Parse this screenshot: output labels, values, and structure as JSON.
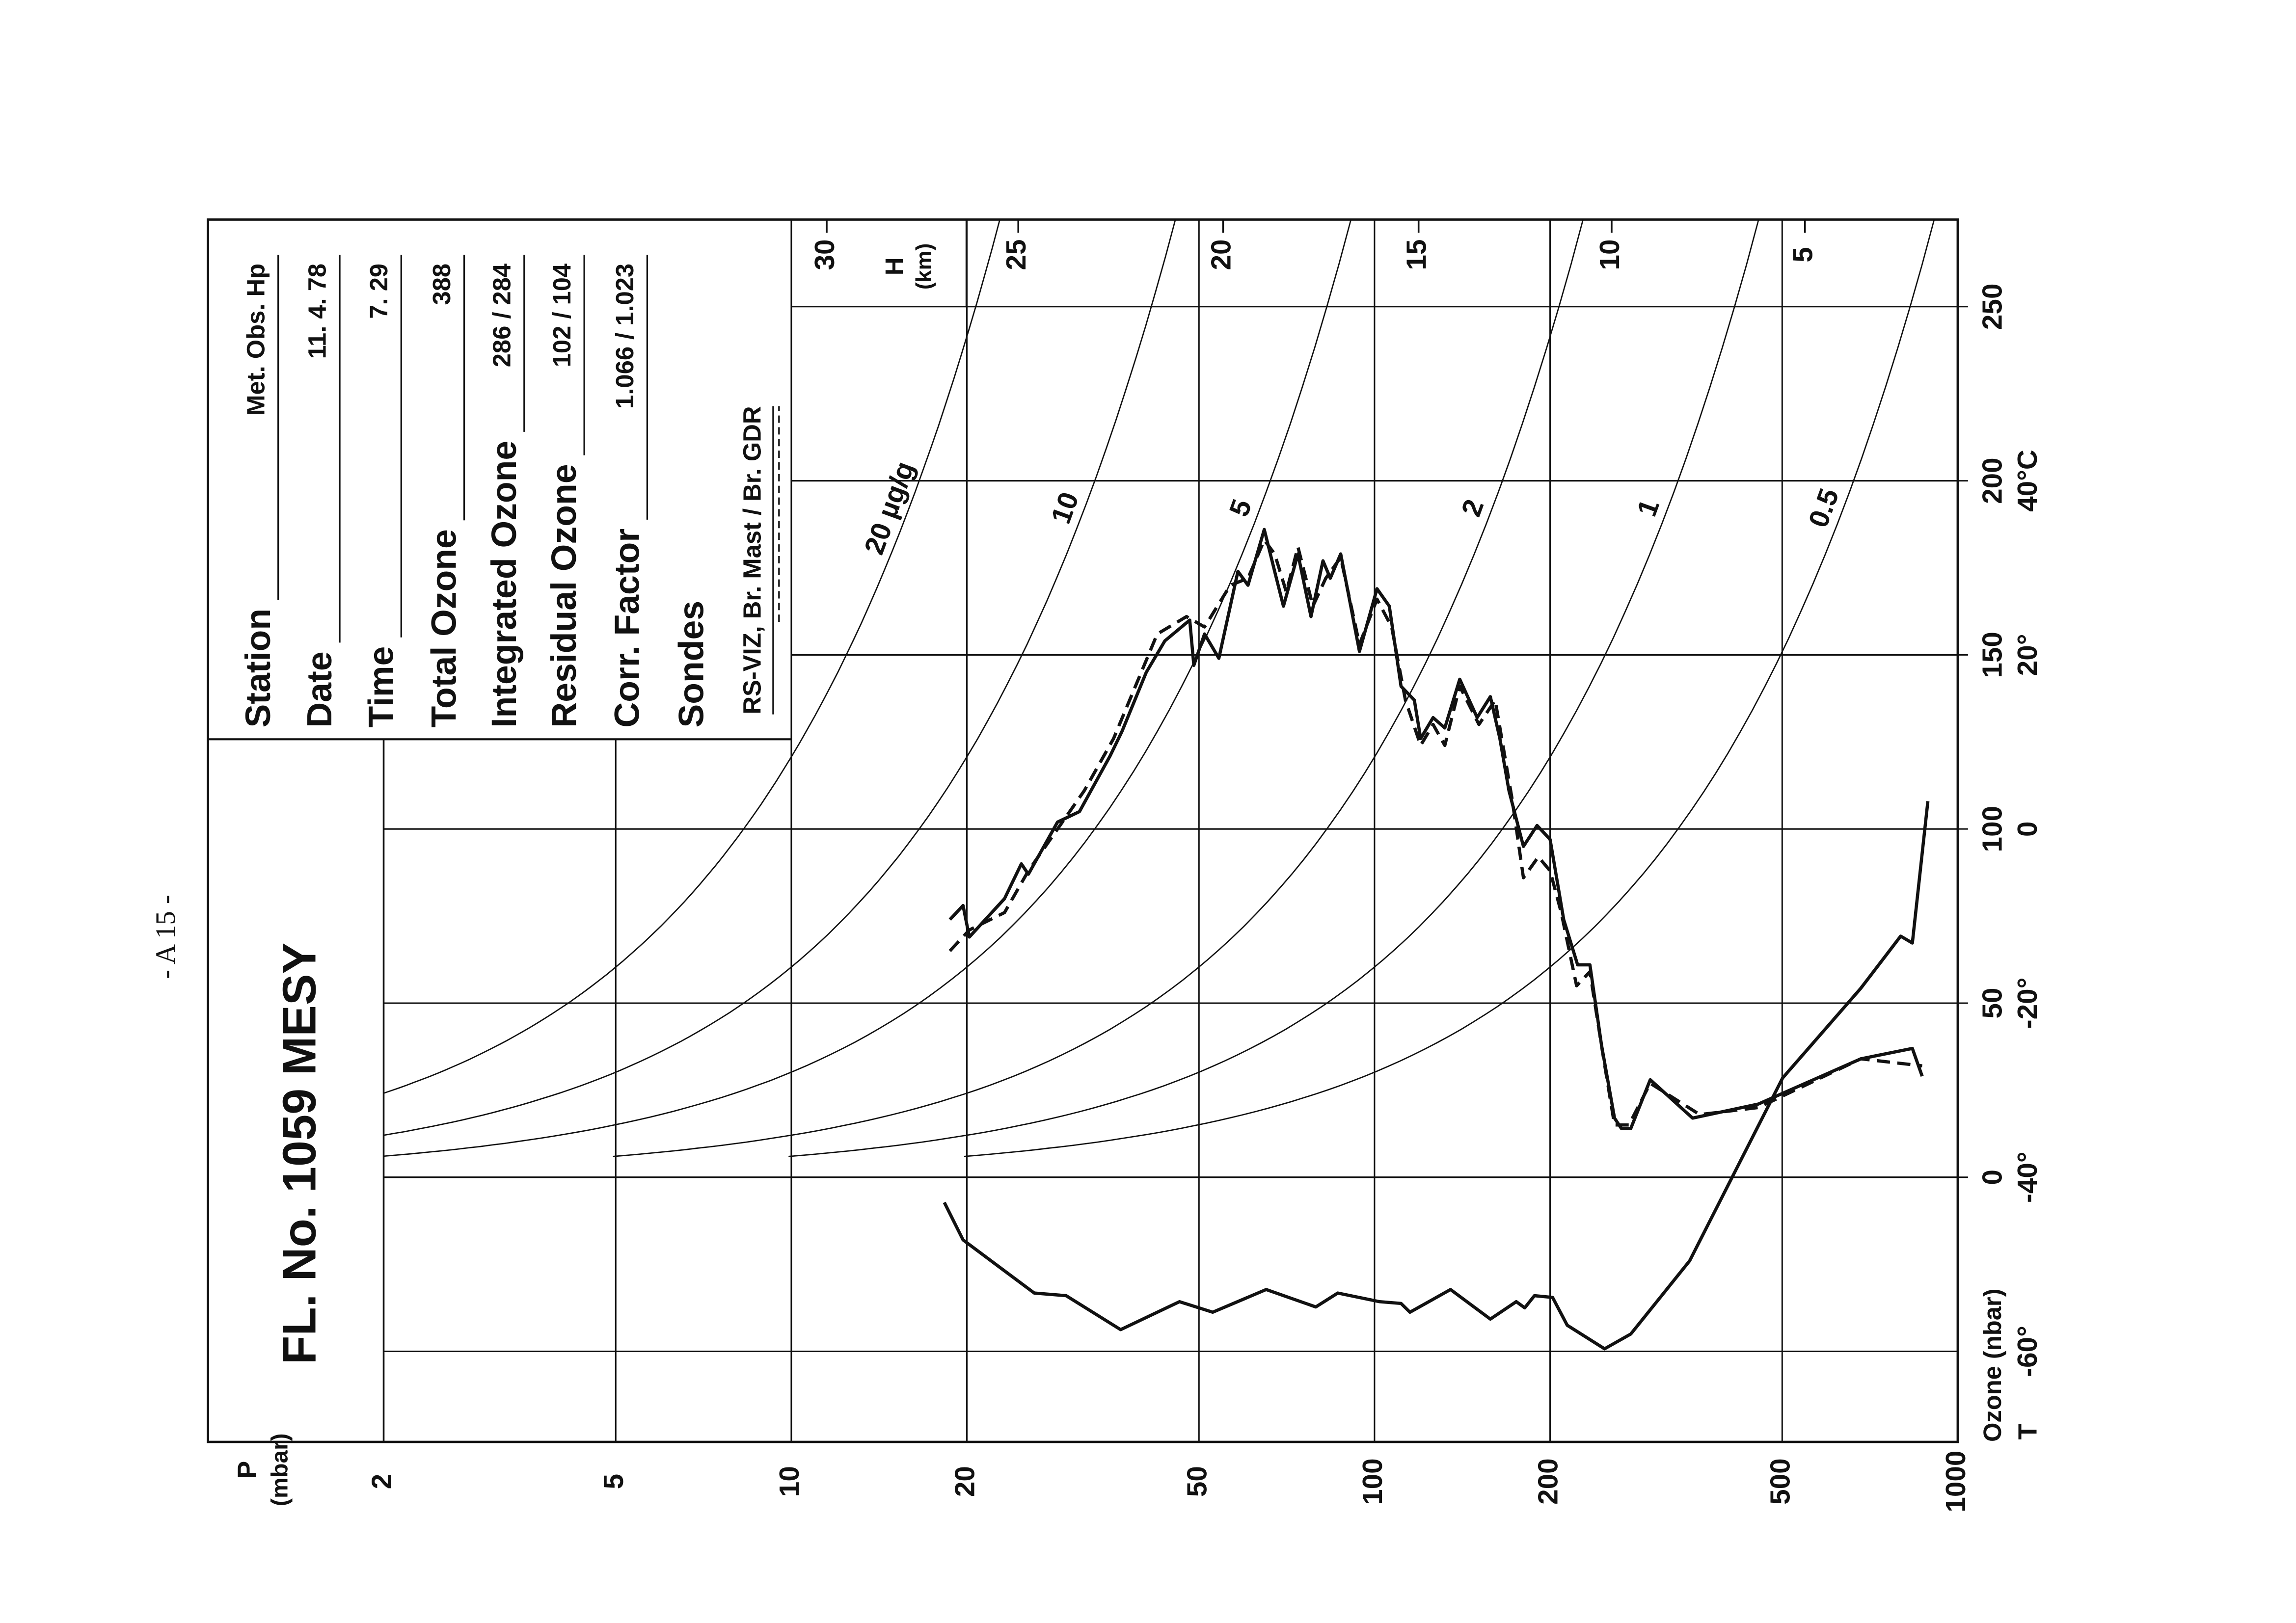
{
  "page_label": "- A 15 -",
  "chart_data": {
    "type": "line",
    "title": "FL. No. 1059 MESY",
    "info": [
      {
        "label": "Station",
        "value": "Met. Obs. Hp"
      },
      {
        "label": "Date",
        "value": "11. 4. 78"
      },
      {
        "label": "Time",
        "value": "7. 29"
      },
      {
        "label": "Total Ozone",
        "value": 388
      },
      {
        "label": "Integrated Ozone",
        "value": "286 / 284"
      },
      {
        "label": "Residual Ozone",
        "value": "102 / 104"
      },
      {
        "label": "Corr. Factor",
        "value": "1.066 / 1.023"
      },
      {
        "label": "Sondes",
        "value": "RS-VIZ, Br. Mast / Br. GDR"
      }
    ],
    "x_label": [
      "P",
      "(mbar)"
    ],
    "y_label": "Ozone (nbar)",
    "y2_label": "T",
    "xscale": "log",
    "xlim": [
      2,
      1000
    ],
    "xticks": [
      2,
      5,
      10,
      20,
      50,
      100,
      200,
      500,
      1000
    ],
    "ylim": [
      -76,
      275
    ],
    "yticks": [
      0,
      50,
      100,
      150,
      200,
      250
    ],
    "y2lim": [
      -70.4,
      70
    ],
    "y2ticks": [
      {
        "value": -60,
        "label": "-60°"
      },
      {
        "value": -40,
        "label": "-40°"
      },
      {
        "value": -20,
        "label": "-20°"
      },
      0,
      {
        "value": 20,
        "label": "20°"
      },
      {
        "value": 40,
        "label": "40°C"
      }
    ],
    "grid": true,
    "height_label": [
      "H",
      "(km)"
    ],
    "height_ticks": [
      {
        "value": 11.5,
        "label": "30"
      },
      {
        "value": 24.5,
        "label": "25"
      },
      {
        "value": 55,
        "label": "20"
      },
      {
        "value": 119,
        "label": "15"
      },
      {
        "value": 255,
        "label": "10"
      },
      {
        "value": 547,
        "label": "5"
      }
    ],
    "mixing_ratio_curves": [
      {
        "value": 20,
        "label": "20 µg/g"
      },
      {
        "value": 10,
        "label": "10"
      },
      {
        "value": 5,
        "label": "5"
      },
      {
        "value": 2,
        "label": "2"
      },
      {
        "value": 1,
        "label": "1"
      },
      {
        "value": 0.5,
        "label": "0.5"
      }
    ],
    "series": [
      {
        "color": "#111111",
        "style": "solid",
        "x": [
          18.7,
          19.7,
          20.2,
          23.2,
          24.8,
          25.5,
          28.6,
          31.2,
          35.2,
          36.9,
          40.6,
          43.7,
          48.2,
          49.0,
          51.1,
          54.1,
          58.3,
          60.7,
          64.7,
          67.4,
          69.8,
          73.9,
          77.8,
          81.6,
          84.0,
          87.5,
          94.2,
          101,
          106,
          111,
          117,
          120,
          126,
          132,
          140,
          150,
          158,
          164,
          170,
          180,
          190,
          200,
          211,
          223,
          234,
          245,
          258,
          265,
          275,
          297,
          351,
          455,
          682,
          836,
          869
        ],
        "values": [
          74,
          78,
          69,
          80,
          90,
          87,
          102,
          105,
          121,
          128,
          145,
          154,
          160,
          147,
          156,
          149,
          174,
          170,
          186,
          174,
          164,
          179,
          161,
          177,
          172,
          179,
          151,
          169,
          164,
          141,
          137,
          126,
          132,
          129,
          143,
          132,
          138,
          126,
          111,
          95,
          101,
          97,
          74,
          61,
          61,
          38,
          17,
          14,
          14,
          28,
          17,
          21,
          34,
          37,
          29
        ]
      },
      {
        "color": "#111111",
        "style": "dashed",
        "x": [
          18.7,
          20.2,
          23.2,
          25.5,
          31.8,
          35.7,
          42.4,
          47.6,
          51.1,
          56.6,
          60.7,
          64.7,
          67.4,
          70.6,
          73.9,
          78.4,
          82.5,
          87.5,
          94.2,
          101,
          107,
          113,
          120,
          126,
          132,
          140,
          151,
          161,
          166,
          172,
          180,
          191,
          200,
          209,
          222,
          234,
          246,
          258,
          273,
          297,
          361,
          455,
          682,
          869
        ],
        "values": [
          65,
          71,
          76,
          88,
          111,
          126,
          156,
          161,
          158,
          170,
          172,
          183,
          179,
          168,
          181,
          164,
          172,
          178,
          153,
          166,
          158,
          137,
          124,
          130,
          124,
          141,
          130,
          137,
          124,
          109,
          86,
          92,
          88,
          76,
          55,
          59,
          36,
          15,
          15,
          27,
          18,
          20,
          34,
          32
        ]
      },
      {
        "color": "#111111",
        "style": "solid",
        "axis": "y2",
        "x": [
          18.3,
          19.7,
          26.1,
          29.6,
          36.7,
          46.3,
          52.8,
          65.2,
          79.3,
          86.5,
          102,
          111,
          115,
          135,
          158,
          175,
          181,
          188,
          202,
          214,
          248,
          275,
          347,
          501,
          682,
          798,
          836,
          889
        ],
        "values": [
          -42.9,
          -47.2,
          -53.3,
          -53.6,
          -57.5,
          -54.3,
          -55.5,
          -52.9,
          -54.9,
          -53.3,
          -54.3,
          -54.5,
          -55.5,
          -52.9,
          -56.3,
          -54.3,
          -55.0,
          -53.6,
          -53.8,
          -57.0,
          -59.7,
          -58.0,
          -49.6,
          -28.6,
          -18.3,
          -12.3,
          -13.1,
          3.2
        ]
      }
    ]
  }
}
